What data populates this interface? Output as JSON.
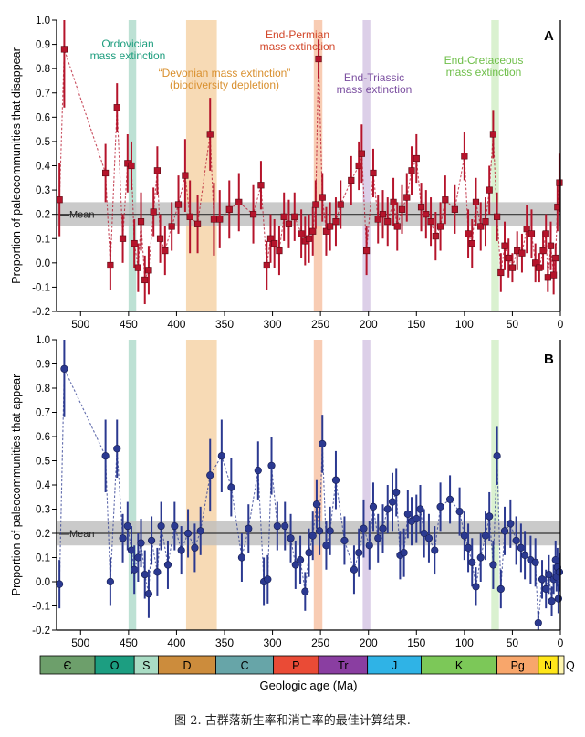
{
  "caption": "图 2. 古群落新生率和消亡率的最佳计算结果.",
  "chart_data": [
    {
      "id": "A",
      "type": "scatter",
      "panel_label": "A",
      "ylabel": "Proportion of paleocommunities that disappear",
      "ylim": [
        -0.2,
        1.0
      ],
      "yticks": [
        -0.2,
        -0.1,
        0.0,
        0.1,
        0.2,
        0.3,
        0.4,
        0.5,
        0.6,
        0.7,
        0.8,
        0.9,
        1.0
      ],
      "ytick_labels": [
        "-0.2",
        "-0.1",
        "0.0",
        "0.1",
        "0.2",
        "0.3",
        "0.4",
        "0.5",
        "0.6",
        "0.7",
        "0.8",
        "0.9",
        "1.0"
      ],
      "xlim": [
        525,
        0
      ],
      "xticks": [
        500,
        450,
        400,
        350,
        300,
        250,
        200,
        150,
        100,
        50,
        0
      ],
      "xtick_labels": [
        "500",
        "450",
        "400",
        "350",
        "300",
        "250",
        "200",
        "150",
        "100",
        "50",
        "0"
      ],
      "mean": 0.2,
      "mean_band": [
        0.15,
        0.25
      ],
      "mean_label": "Mean",
      "marker": "square",
      "color": "#b5142b",
      "points": [
        [
          522,
          0.26,
          0.15
        ],
        [
          517,
          0.88,
          0.24
        ],
        [
          474,
          0.37,
          0.12
        ],
        [
          469,
          -0.01,
          0.1
        ],
        [
          462,
          0.64,
          0.1
        ],
        [
          456,
          0.1,
          0.1
        ],
        [
          451,
          0.41,
          0.12
        ],
        [
          447,
          0.4,
          0.1
        ],
        [
          444,
          0.08,
          0.1
        ],
        [
          440,
          -0.02,
          0.1
        ],
        [
          437,
          0.17,
          0.12
        ],
        [
          433,
          -0.07,
          0.1
        ],
        [
          429,
          -0.03,
          0.1
        ],
        [
          424,
          0.21,
          0.1
        ],
        [
          420,
          0.38,
          0.1
        ],
        [
          417,
          0.1,
          0.1
        ],
        [
          412,
          0.05,
          0.1
        ],
        [
          405,
          0.15,
          0.1
        ],
        [
          398,
          0.24,
          0.12
        ],
        [
          391,
          0.36,
          0.15
        ],
        [
          386,
          0.19,
          0.15
        ],
        [
          378,
          0.16,
          0.12
        ],
        [
          365,
          0.53,
          0.15
        ],
        [
          361,
          0.18,
          0.15
        ],
        [
          355,
          0.18,
          0.12
        ],
        [
          345,
          0.22,
          0.12
        ],
        [
          335,
          0.25,
          0.12
        ],
        [
          320,
          0.2,
          0.12
        ],
        [
          312,
          0.32,
          0.1
        ],
        [
          306,
          -0.01,
          0.1
        ],
        [
          302,
          0.1,
          0.1
        ],
        [
          298,
          0.08,
          0.1
        ],
        [
          293,
          0.05,
          0.1
        ],
        [
          288,
          0.19,
          0.1
        ],
        [
          283,
          0.16,
          0.1
        ],
        [
          277,
          0.19,
          0.1
        ],
        [
          270,
          0.12,
          0.1
        ],
        [
          266,
          0.09,
          0.1
        ],
        [
          262,
          0.1,
          0.1
        ],
        [
          258,
          0.13,
          0.1
        ],
        [
          255,
          0.24,
          0.1
        ],
        [
          252,
          0.84,
          0.08
        ],
        [
          248,
          0.27,
          0.1
        ],
        [
          244,
          0.13,
          0.1
        ],
        [
          240,
          0.15,
          0.1
        ],
        [
          234,
          0.17,
          0.1
        ],
        [
          229,
          0.24,
          0.1
        ],
        [
          218,
          0.34,
          0.1
        ],
        [
          210,
          0.4,
          0.1
        ],
        [
          207,
          0.45,
          0.12
        ],
        [
          202,
          0.05,
          0.1
        ],
        [
          195,
          0.37,
          0.1
        ],
        [
          190,
          0.18,
          0.1
        ],
        [
          185,
          0.2,
          0.1
        ],
        [
          180,
          0.17,
          0.1
        ],
        [
          174,
          0.25,
          0.1
        ],
        [
          170,
          0.15,
          0.1
        ],
        [
          165,
          0.22,
          0.1
        ],
        [
          160,
          0.27,
          0.1
        ],
        [
          155,
          0.38,
          0.1
        ],
        [
          150,
          0.43,
          0.1
        ],
        [
          145,
          0.23,
          0.1
        ],
        [
          140,
          0.2,
          0.1
        ],
        [
          135,
          0.17,
          0.1
        ],
        [
          130,
          0.11,
          0.1
        ],
        [
          125,
          0.15,
          0.1
        ],
        [
          120,
          0.26,
          0.1
        ],
        [
          110,
          0.22,
          0.1
        ],
        [
          100,
          0.44,
          0.1
        ],
        [
          96,
          0.12,
          0.1
        ],
        [
          92,
          0.08,
          0.1
        ],
        [
          88,
          0.25,
          0.1
        ],
        [
          83,
          0.15,
          0.1
        ],
        [
          78,
          0.17,
          0.1
        ],
        [
          74,
          0.3,
          0.1
        ],
        [
          70,
          0.53,
          0.1
        ],
        [
          66,
          0.19,
          0.1
        ],
        [
          62,
          -0.04,
          0.08
        ],
        [
          58,
          0.07,
          0.1
        ],
        [
          54,
          0.02,
          0.08
        ],
        [
          50,
          -0.02,
          0.06
        ],
        [
          45,
          0.05,
          0.08
        ],
        [
          40,
          0.04,
          0.08
        ],
        [
          35,
          0.14,
          0.1
        ],
        [
          30,
          0.12,
          0.1
        ],
        [
          26,
          0.0,
          0.08
        ],
        [
          22,
          -0.02,
          0.06
        ],
        [
          18,
          0.05,
          0.08
        ],
        [
          15,
          0.12,
          0.08
        ],
        [
          13,
          -0.06,
          0.06
        ],
        [
          10,
          0.07,
          0.1
        ],
        [
          7,
          -0.05,
          0.08
        ],
        [
          5,
          0.02,
          0.06
        ],
        [
          3,
          0.23,
          0.1
        ],
        [
          1,
          0.33,
          0.12
        ]
      ],
      "events": [
        {
          "name": "ordovician",
          "start": 450,
          "end": 442,
          "color": "#b2dccc"
        },
        {
          "name": "devonian",
          "start": 390,
          "end": 358,
          "color": "#f6d3a8"
        },
        {
          "name": "permian",
          "start": 257,
          "end": 248,
          "color": "#f7c3a6"
        },
        {
          "name": "triassic",
          "start": 206,
          "end": 198,
          "color": "#d6c7e4"
        },
        {
          "name": "cretaceous",
          "start": 72,
          "end": 64,
          "color": "#d4efc8"
        }
      ],
      "annotations": {
        "ordovician": [
          "Ordovician",
          "mass extinction"
        ],
        "devonian": [
          "“Devonian mass extinction”",
          "(biodiversity depletion)"
        ],
        "permian": [
          "End-Permian",
          "mass extinction"
        ],
        "triassic": [
          "End-Triassic",
          "mass extinction"
        ],
        "cretaceous": [
          "End-Cretaceous",
          "mass extinction"
        ]
      },
      "annotation_colors": {
        "ordovician": "#1f9e7f",
        "devonian": "#d9902f",
        "permian": "#d2472a",
        "triassic": "#7b4fa0",
        "cretaceous": "#6fbf4a"
      }
    },
    {
      "id": "B",
      "type": "scatter",
      "panel_label": "B",
      "ylabel": "Proportion of paleocommunities that appear",
      "ylim": [
        -0.2,
        1.0
      ],
      "yticks": [
        -0.2,
        -0.1,
        0.0,
        0.1,
        0.2,
        0.3,
        0.4,
        0.5,
        0.6,
        0.7,
        0.8,
        0.9,
        1.0
      ],
      "ytick_labels": [
        "-0.2",
        "-0.1",
        "0.0",
        "0.1",
        "0.2",
        "0.3",
        "0.4",
        "0.5",
        "0.6",
        "0.7",
        "0.8",
        "0.9",
        "1.0"
      ],
      "xlim": [
        525,
        0
      ],
      "xticks": [
        500,
        450,
        400,
        350,
        300,
        250,
        200,
        150,
        100,
        50,
        0
      ],
      "xtick_labels": [
        "500",
        "450",
        "400",
        "350",
        "300",
        "250",
        "200",
        "150",
        "100",
        "50",
        "0"
      ],
      "xlabel": "Geologic age (Ma)",
      "mean": 0.2,
      "mean_band": [
        0.15,
        0.25
      ],
      "mean_label": "Mean",
      "marker": "circle",
      "color": "#2b3990",
      "points": [
        [
          522,
          -0.01,
          0.1
        ],
        [
          517,
          0.88,
          0.2
        ],
        [
          474,
          0.52,
          0.15
        ],
        [
          469,
          0.0,
          0.1
        ],
        [
          462,
          0.55,
          0.12
        ],
        [
          456,
          0.18,
          0.1
        ],
        [
          451,
          0.23,
          0.1
        ],
        [
          447,
          0.13,
          0.1
        ],
        [
          444,
          0.05,
          0.1
        ],
        [
          440,
          0.1,
          0.1
        ],
        [
          437,
          0.16,
          0.1
        ],
        [
          433,
          0.03,
          0.1
        ],
        [
          429,
          -0.05,
          0.1
        ],
        [
          426,
          0.17,
          0.1
        ],
        [
          420,
          0.04,
          0.1
        ],
        [
          416,
          0.23,
          0.1
        ],
        [
          409,
          0.07,
          0.1
        ],
        [
          402,
          0.23,
          0.1
        ],
        [
          395,
          0.13,
          0.1
        ],
        [
          388,
          0.2,
          0.1
        ],
        [
          381,
          0.14,
          0.1
        ],
        [
          375,
          0.21,
          0.1
        ],
        [
          365,
          0.44,
          0.15
        ],
        [
          353,
          0.52,
          0.15
        ],
        [
          343,
          0.39,
          0.12
        ],
        [
          332,
          0.1,
          0.1
        ],
        [
          325,
          0.22,
          0.1
        ],
        [
          315,
          0.46,
          0.12
        ],
        [
          309,
          0.0,
          0.1
        ],
        [
          305,
          0.01,
          0.1
        ],
        [
          301,
          0.48,
          0.12
        ],
        [
          295,
          0.23,
          0.1
        ],
        [
          287,
          0.23,
          0.1
        ],
        [
          281,
          0.18,
          0.1
        ],
        [
          276,
          0.07,
          0.1
        ],
        [
          271,
          0.09,
          0.1
        ],
        [
          266,
          -0.04,
          0.08
        ],
        [
          262,
          0.12,
          0.1
        ],
        [
          258,
          0.19,
          0.1
        ],
        [
          254,
          0.32,
          0.1
        ],
        [
          251,
          0.21,
          0.1
        ],
        [
          248,
          0.57,
          0.12
        ],
        [
          244,
          0.15,
          0.1
        ],
        [
          240,
          0.21,
          0.1
        ],
        [
          234,
          0.42,
          0.12
        ],
        [
          225,
          0.17,
          0.1
        ],
        [
          215,
          0.05,
          0.1
        ],
        [
          210,
          0.12,
          0.1
        ],
        [
          205,
          0.22,
          0.12
        ],
        [
          199,
          0.15,
          0.1
        ],
        [
          195,
          0.31,
          0.1
        ],
        [
          190,
          0.18,
          0.1
        ],
        [
          185,
          0.22,
          0.1
        ],
        [
          180,
          0.3,
          0.1
        ],
        [
          175,
          0.33,
          0.12
        ],
        [
          171,
          0.37,
          0.1
        ],
        [
          167,
          0.11,
          0.1
        ],
        [
          163,
          0.12,
          0.1
        ],
        [
          159,
          0.28,
          0.1
        ],
        [
          155,
          0.25,
          0.1
        ],
        [
          150,
          0.26,
          0.1
        ],
        [
          146,
          0.3,
          0.1
        ],
        [
          142,
          0.2,
          0.1
        ],
        [
          137,
          0.18,
          0.1
        ],
        [
          131,
          0.13,
          0.1
        ],
        [
          125,
          0.31,
          0.1
        ],
        [
          115,
          0.34,
          0.1
        ],
        [
          105,
          0.29,
          0.1
        ],
        [
          100,
          0.19,
          0.1
        ],
        [
          96,
          0.14,
          0.1
        ],
        [
          92,
          0.08,
          0.1
        ],
        [
          88,
          -0.02,
          0.08
        ],
        [
          83,
          0.1,
          0.1
        ],
        [
          78,
          0.19,
          0.1
        ],
        [
          74,
          0.27,
          0.1
        ],
        [
          70,
          0.07,
          0.1
        ],
        [
          66,
          0.52,
          0.12
        ],
        [
          62,
          -0.03,
          0.08
        ],
        [
          58,
          0.21,
          0.1
        ],
        [
          52,
          0.24,
          0.1
        ],
        [
          46,
          0.17,
          0.1
        ],
        [
          41,
          0.14,
          0.1
        ],
        [
          37,
          0.11,
          0.1
        ],
        [
          31,
          0.09,
          0.1
        ],
        [
          26,
          0.08,
          0.1
        ],
        [
          23,
          -0.17,
          0.05
        ],
        [
          19,
          0.01,
          0.08
        ],
        [
          15,
          -0.03,
          0.08
        ],
        [
          12,
          0.03,
          0.08
        ],
        [
          9,
          -0.08,
          0.06
        ],
        [
          7,
          0.01,
          0.06
        ],
        [
          5,
          0.09,
          0.08
        ],
        [
          4,
          0.02,
          0.06
        ],
        [
          3,
          0.06,
          0.08
        ],
        [
          2,
          -0.07,
          0.06
        ],
        [
          1,
          0.04,
          0.08
        ]
      ],
      "events": [
        {
          "name": "ordovician",
          "start": 450,
          "end": 442,
          "color": "#b2dccc"
        },
        {
          "name": "devonian",
          "start": 390,
          "end": 358,
          "color": "#f6d3a8"
        },
        {
          "name": "permian",
          "start": 257,
          "end": 248,
          "color": "#f7c3a6"
        },
        {
          "name": "triassic",
          "start": 206,
          "end": 198,
          "color": "#d6c7e4"
        },
        {
          "name": "cretaceous",
          "start": 72,
          "end": 64,
          "color": "#d4efc8"
        }
      ],
      "geologic_periods": [
        {
          "label": "Є",
          "start": 541,
          "end": 485,
          "color": "#6d9f6b"
        },
        {
          "label": "O",
          "start": 485,
          "end": 444,
          "color": "#1c9e81"
        },
        {
          "label": "S",
          "start": 444,
          "end": 419,
          "color": "#a9dcc4"
        },
        {
          "label": "D",
          "start": 419,
          "end": 359,
          "color": "#cc8c3c"
        },
        {
          "label": "C",
          "start": 359,
          "end": 299,
          "color": "#67a5a8"
        },
        {
          "label": "P",
          "start": 299,
          "end": 252,
          "color": "#ea4b36"
        },
        {
          "label": "Tr",
          "start": 252,
          "end": 201,
          "color": "#8a3ea1"
        },
        {
          "label": "J",
          "start": 201,
          "end": 145,
          "color": "#2fb3e6"
        },
        {
          "label": "K",
          "start": 145,
          "end": 66,
          "color": "#7cc858"
        },
        {
          "label": "Pg",
          "start": 66,
          "end": 23,
          "color": "#f8a66b"
        },
        {
          "label": "N",
          "start": 23,
          "end": 2.6,
          "color": "#ffe61a"
        },
        {
          "label": "Q",
          "start": 2.6,
          "end": 0,
          "color": "#fff6b0"
        }
      ]
    }
  ]
}
